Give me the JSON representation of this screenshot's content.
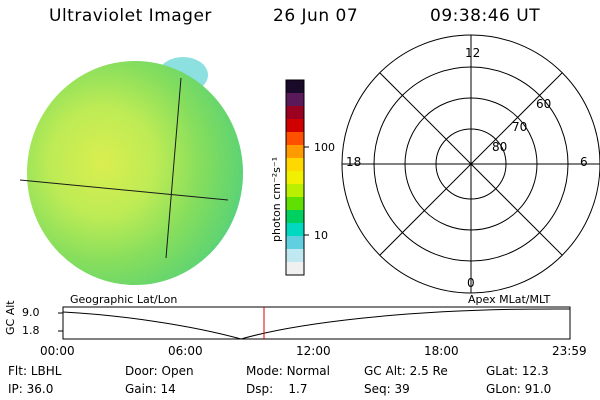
{
  "header": {
    "instrument": "Ultraviolet Imager",
    "date": "26 Jun 07",
    "time": "09:38:46 UT"
  },
  "colorbar": {
    "unit_label": "photon cm⁻²s⁻¹",
    "tick_labels": [
      "100",
      "10"
    ],
    "colors": [
      "#1a0a2a",
      "#5a1a5a",
      "#9a0020",
      "#d00000",
      "#ff5000",
      "#ff9a00",
      "#ffd800",
      "#f0f000",
      "#b8f000",
      "#60e000",
      "#00d060",
      "#00d8c0",
      "#60d0e0",
      "#c0e8f0",
      "#f0f0f0"
    ]
  },
  "polar": {
    "labels": [
      "12",
      "18",
      "6",
      "0",
      "60",
      "70",
      "80"
    ]
  },
  "timeline": {
    "left_label": "Geographic Lat/Lon",
    "right_label": "Apex MLat/MLT",
    "axis_title": "GC Alt",
    "y_labels": [
      "9.0",
      "1.8"
    ],
    "x_labels": [
      "00:00",
      "06:00",
      "12:00",
      "18:00",
      "23:59"
    ],
    "marker_time": "09:38",
    "marker_color": "#e00000"
  },
  "info": {
    "row1": [
      {
        "key": "Flt:",
        "value": "LBHL"
      },
      {
        "key": "Door:",
        "value": "Open"
      },
      {
        "key": "Mode:",
        "value": "Normal"
      },
      {
        "key": "GC Alt:",
        "value": "2.5 Re"
      },
      {
        "key": "GLat:",
        "value": "12.3"
      }
    ],
    "row2": [
      {
        "key": "IP:",
        "value": "36.0"
      },
      {
        "key": "Gain:",
        "value": "14"
      },
      {
        "key": "Dsp:",
        "value": "1.7"
      },
      {
        "key": "Seq:",
        "value": "39"
      },
      {
        "key": "GLon:",
        "value": "91.0"
      }
    ]
  }
}
